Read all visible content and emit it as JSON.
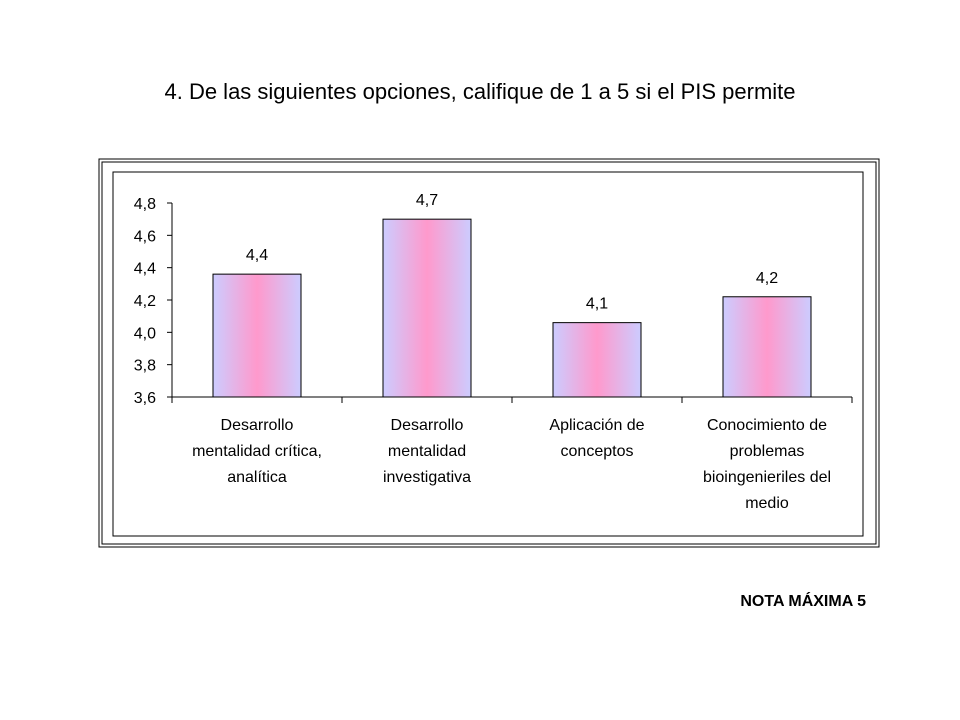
{
  "chart_data": {
    "type": "bar",
    "title": "4.  De las siguientes opciones, califique de 1 a 5 si el PIS permite",
    "categories": [
      [
        "Desarrollo",
        "mentalidad crítica,",
        "analítica"
      ],
      [
        "Desarrollo",
        "mentalidad",
        "investigativa"
      ],
      [
        "Aplicación de",
        "conceptos"
      ],
      [
        "Conocimiento de",
        "problemas",
        "bioingenieriles del",
        "medio"
      ]
    ],
    "values": [
      4.36,
      4.7,
      4.06,
      4.22
    ],
    "value_labels": [
      "4,4",
      "4,7",
      "4,1",
      "4,2"
    ],
    "color": "#ff99cc",
    "edge_color": "#ccccff",
    "ylim": [
      3.6,
      4.8
    ],
    "yticks": [
      {
        "value": 3.6,
        "label": "3,6"
      },
      {
        "value": 3.8,
        "label": "3,8"
      },
      {
        "value": 4.0,
        "label": "4,0"
      },
      {
        "value": 4.2,
        "label": "4,2"
      },
      {
        "value": 4.4,
        "label": "4,4"
      },
      {
        "value": 4.6,
        "label": "4,6"
      },
      {
        "value": 4.8,
        "label": "4,8"
      }
    ],
    "note": "NOTA MÁXIMA 5"
  }
}
